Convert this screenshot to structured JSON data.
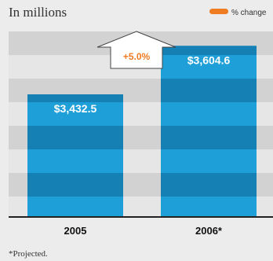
{
  "chart_data": {
    "type": "bar",
    "title": "",
    "unit_label": "In millions",
    "categories": [
      "2005",
      "2006*"
    ],
    "values": [
      3432.5,
      3604.6
    ],
    "value_labels": [
      "$3,432.5",
      "$3,604.6"
    ],
    "change": {
      "label": "+5.0%",
      "legend": "% change",
      "value": 5.0
    },
    "footnote": "*Projected.",
    "xlabel": "",
    "ylabel": "",
    "grid": "horizontal bands",
    "legend_position": "top-right",
    "colors": {
      "bar": "#1e9fd8",
      "bar_band": "#1580b4",
      "band_light": "#e6e6e6",
      "band_dark": "#d2d2d2",
      "change": "#ef7b22",
      "baseline": "#222222"
    }
  }
}
